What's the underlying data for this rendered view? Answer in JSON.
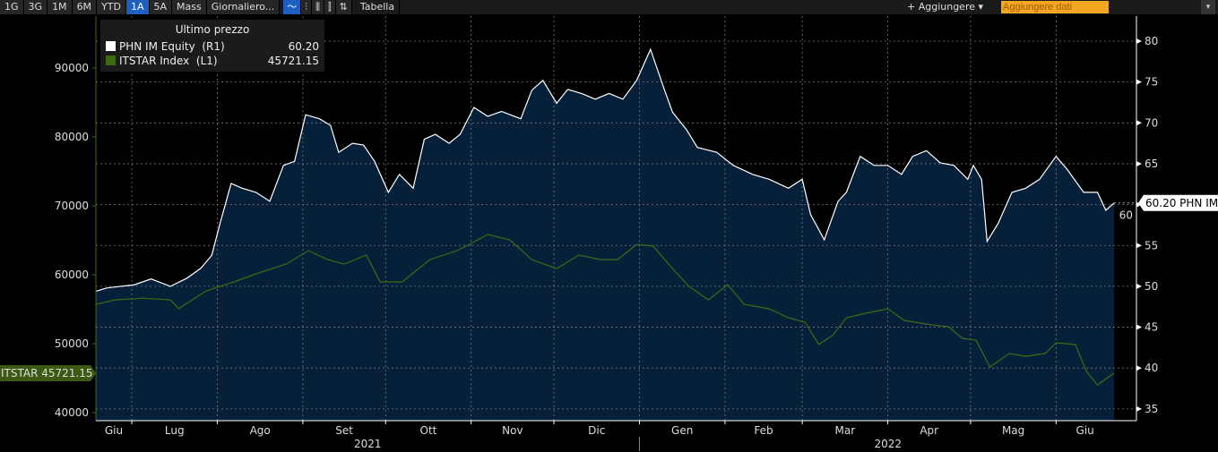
{
  "toolbar": {
    "buttons": [
      "1G",
      "3G",
      "1M",
      "6M",
      "YTD",
      "1A",
      "5A",
      "Mass",
      "Giornaliero..."
    ],
    "active": "1A",
    "chart_type_icons": [
      "line-chart-icon",
      "ohlc-icon",
      "candle-icon",
      "bar-candle-icon",
      "hilo-icon"
    ],
    "table_label": "Tabella",
    "add_label": "+ Aggiungere ▾",
    "add_data_placeholder": "Aggiungere dati",
    "menu_icon": "▾"
  },
  "legend": {
    "title": "Ultimo prezzo",
    "items": [
      {
        "label": "PHN IM Equity  (R1)",
        "value": "60.20",
        "color": "#ffffff"
      },
      {
        "label": "ITSTAR Index  (L1)",
        "value": "45721.15",
        "color": "#3d6b12"
      }
    ]
  },
  "callouts": {
    "right": "60.20 PHN IM",
    "left": "ITSTAR 45721.15"
  },
  "chart_data": {
    "type": "area",
    "x_type": "date",
    "months": [
      [
        "2021-06",
        "Giu"
      ],
      [
        "2021-07",
        "Lug"
      ],
      [
        "2021-08",
        "Ago"
      ],
      [
        "2021-09",
        "Set"
      ],
      [
        "2021-10",
        "Ott"
      ],
      [
        "2021-11",
        "Nov"
      ],
      [
        "2021-12",
        "Dic"
      ],
      [
        "2022-01",
        "Gen"
      ],
      [
        "2022-02",
        "Feb"
      ],
      [
        "2022-03",
        "Mar"
      ],
      [
        "2022-04",
        "Apr"
      ],
      [
        "2022-05",
        "Mag"
      ],
      [
        "2022-06",
        "Giu"
      ]
    ],
    "years": [
      "2021",
      "2022"
    ],
    "left_axis": {
      "ticks": [
        40000,
        50000,
        60000,
        70000,
        80000,
        90000
      ],
      "ylim": [
        38000,
        96000
      ]
    },
    "right_axis": {
      "ticks": [
        35,
        40,
        45,
        50,
        55,
        60,
        65,
        70,
        75,
        80
      ],
      "ylim": [
        33.5,
        83
      ]
    },
    "grid": true,
    "legend_position": "top-left",
    "series": [
      {
        "name": "PHN IM Equity",
        "axis": "right",
        "color": "#ffffff",
        "fill": "#06203a",
        "points": [
          [
            "2021-06-18",
            49.4
          ],
          [
            "2021-06-22",
            49.8
          ],
          [
            "2021-07-02",
            50.2
          ],
          [
            "2021-07-08",
            50.9
          ],
          [
            "2021-07-15",
            50.0
          ],
          [
            "2021-07-21",
            51.0
          ],
          [
            "2021-07-26",
            52.2
          ],
          [
            "2021-07-30",
            53.8
          ],
          [
            "2021-08-02",
            57.7
          ],
          [
            "2021-08-06",
            62.6
          ],
          [
            "2021-08-10",
            62.0
          ],
          [
            "2021-08-15",
            61.5
          ],
          [
            "2021-08-20",
            60.4
          ],
          [
            "2021-08-25",
            64.8
          ],
          [
            "2021-08-29",
            65.3
          ],
          [
            "2021-09-02",
            71.0
          ],
          [
            "2021-09-07",
            70.5
          ],
          [
            "2021-09-11",
            69.7
          ],
          [
            "2021-09-14",
            66.4
          ],
          [
            "2021-09-19",
            67.5
          ],
          [
            "2021-09-23",
            67.3
          ],
          [
            "2021-09-27",
            65.3
          ],
          [
            "2021-10-02",
            61.5
          ],
          [
            "2021-10-06",
            63.7
          ],
          [
            "2021-10-11",
            62.0
          ],
          [
            "2021-10-15",
            68.0
          ],
          [
            "2021-10-19",
            68.6
          ],
          [
            "2021-10-24",
            67.5
          ],
          [
            "2021-10-28",
            68.6
          ],
          [
            "2021-11-02",
            71.9
          ],
          [
            "2021-11-07",
            70.8
          ],
          [
            "2021-11-12",
            71.4
          ],
          [
            "2021-11-19",
            70.5
          ],
          [
            "2021-11-23",
            74.0
          ],
          [
            "2021-11-27",
            75.2
          ],
          [
            "2021-12-02",
            72.4
          ],
          [
            "2021-12-06",
            74.1
          ],
          [
            "2021-12-11",
            73.6
          ],
          [
            "2021-12-16",
            72.9
          ],
          [
            "2021-12-21",
            73.6
          ],
          [
            "2021-12-26",
            72.9
          ],
          [
            "2021-12-31",
            75.2
          ],
          [
            "2022-01-05",
            79.0
          ],
          [
            "2022-01-10",
            74.1
          ],
          [
            "2022-01-13",
            71.3
          ],
          [
            "2022-01-18",
            69.2
          ],
          [
            "2022-01-22",
            67.0
          ],
          [
            "2022-01-29",
            66.4
          ],
          [
            "2022-02-04",
            64.8
          ],
          [
            "2022-02-11",
            63.7
          ],
          [
            "2022-02-17",
            63.1
          ],
          [
            "2022-02-24",
            62.0
          ],
          [
            "2022-03-01",
            63.1
          ],
          [
            "2022-03-04",
            58.8
          ],
          [
            "2022-03-09",
            55.7
          ],
          [
            "2022-03-14",
            60.4
          ],
          [
            "2022-03-17",
            61.5
          ],
          [
            "2022-03-22",
            65.9
          ],
          [
            "2022-03-27",
            64.8
          ],
          [
            "2022-04-01",
            64.8
          ],
          [
            "2022-04-06",
            63.7
          ],
          [
            "2022-04-10",
            65.9
          ],
          [
            "2022-04-15",
            66.6
          ],
          [
            "2022-04-20",
            65.1
          ],
          [
            "2022-04-25",
            64.8
          ],
          [
            "2022-04-30",
            63.1
          ],
          [
            "2022-05-02",
            64.8
          ],
          [
            "2022-05-05",
            63.1
          ],
          [
            "2022-05-07",
            55.5
          ],
          [
            "2022-05-11",
            57.7
          ],
          [
            "2022-05-16",
            61.5
          ],
          [
            "2022-05-21",
            62.0
          ],
          [
            "2022-05-26",
            63.1
          ],
          [
            "2022-06-01",
            65.9
          ],
          [
            "2022-06-05",
            64.3
          ],
          [
            "2022-06-11",
            61.5
          ],
          [
            "2022-06-16",
            61.5
          ],
          [
            "2022-06-19",
            59.3
          ],
          [
            "2022-06-22",
            60.2
          ]
        ]
      },
      {
        "name": "ITSTAR Index",
        "axis": "left",
        "color": "#3d6b12",
        "points": [
          [
            "2021-06-18",
            55700
          ],
          [
            "2021-06-25",
            56360
          ],
          [
            "2021-07-05",
            56600
          ],
          [
            "2021-07-15",
            56360
          ],
          [
            "2021-07-18",
            55100
          ],
          [
            "2021-07-28",
            57660
          ],
          [
            "2021-08-07",
            58960
          ],
          [
            "2021-08-16",
            60260
          ],
          [
            "2021-08-26",
            61560
          ],
          [
            "2021-09-03",
            63500
          ],
          [
            "2021-09-10",
            62200
          ],
          [
            "2021-09-16",
            61560
          ],
          [
            "2021-09-24",
            62860
          ],
          [
            "2021-09-29",
            58960
          ],
          [
            "2021-10-07",
            58960
          ],
          [
            "2021-10-17",
            62200
          ],
          [
            "2021-10-27",
            63500
          ],
          [
            "2021-11-07",
            65840
          ],
          [
            "2021-11-15",
            65060
          ],
          [
            "2021-11-23",
            62200
          ],
          [
            "2021-12-02",
            60900
          ],
          [
            "2021-12-10",
            62860
          ],
          [
            "2021-12-18",
            62200
          ],
          [
            "2021-12-24",
            62200
          ],
          [
            "2021-12-31",
            64400
          ],
          [
            "2022-01-06",
            64150
          ],
          [
            "2022-01-13",
            60900
          ],
          [
            "2022-01-19",
            58300
          ],
          [
            "2022-01-26",
            56360
          ],
          [
            "2022-02-02",
            58560
          ],
          [
            "2022-02-08",
            55700
          ],
          [
            "2022-02-17",
            55060
          ],
          [
            "2022-02-24",
            53770
          ],
          [
            "2022-03-02",
            53120
          ],
          [
            "2022-03-07",
            49900
          ],
          [
            "2022-03-12",
            51200
          ],
          [
            "2022-03-17",
            53770
          ],
          [
            "2022-03-24",
            54420
          ],
          [
            "2022-04-01",
            55060
          ],
          [
            "2022-04-07",
            53380
          ],
          [
            "2022-04-17",
            52730
          ],
          [
            "2022-04-23",
            52470
          ],
          [
            "2022-04-28",
            50780
          ],
          [
            "2022-05-03",
            50520
          ],
          [
            "2022-05-08",
            46620
          ],
          [
            "2022-05-15",
            48570
          ],
          [
            "2022-05-21",
            48180
          ],
          [
            "2022-05-28",
            48570
          ],
          [
            "2022-06-01",
            50130
          ],
          [
            "2022-06-08",
            49870
          ],
          [
            "2022-06-12",
            45970
          ],
          [
            "2022-06-16",
            44020
          ],
          [
            "2022-06-22",
            45721.15
          ]
        ]
      }
    ]
  }
}
